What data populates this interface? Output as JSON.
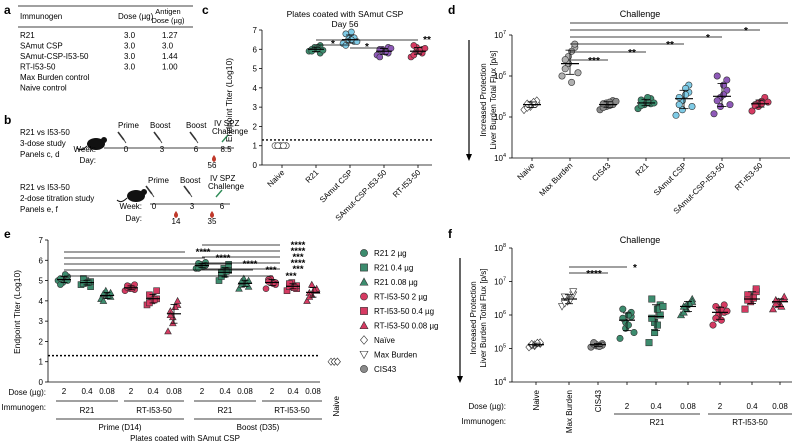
{
  "panel_labels": {
    "a": "a",
    "b": "b",
    "c": "c",
    "d": "d",
    "e": "e",
    "f": "f"
  },
  "table_a": {
    "headers": {
      "immunogen": "Immunogen",
      "dose": "Dose (µg)",
      "antigen_line1": "Antigen",
      "antigen_line2": "Dose (µg)"
    },
    "rows": [
      {
        "immunogen": "R21",
        "dose": "3.0",
        "antigen": "1.27"
      },
      {
        "immunogen": "SAmut CSP",
        "dose": "3.0",
        "antigen": "3.0"
      },
      {
        "immunogen": "SAmut-CSP-I53-50",
        "dose": "3.0",
        "antigen": "1.44"
      },
      {
        "immunogen": "RT-I53-50",
        "dose": "3.0",
        "antigen": "1.00"
      },
      {
        "immunogen": "Max Burden control",
        "dose": "",
        "antigen": ""
      },
      {
        "immunogen": "Naive control",
        "dose": "",
        "antigen": ""
      }
    ]
  },
  "schematic_b": {
    "study1": {
      "line1": "R21 vs I53-50",
      "line2": "3-dose study",
      "line3": "Panels c, d",
      "events": [
        "Prime",
        "Boost",
        "Boost"
      ],
      "challenge_line1": "IV SPZ",
      "challenge_line2": "Challenge",
      "week_label": "Week:",
      "day_label": "Day:",
      "weeks": [
        "0",
        "3",
        "6",
        "8.5"
      ],
      "days": [
        "56"
      ]
    },
    "study2": {
      "line1": "R21 vs I53-50",
      "line2": "2-dose titration study",
      "line3": "Panels e, f",
      "events": [
        "Prime",
        "Boost"
      ],
      "challenge_line1": "IV SPZ",
      "challenge_line2": "Challenge",
      "week_label": "Week:",
      "day_label": "Day:",
      "weeks": [
        "0",
        "3",
        "6"
      ],
      "days": [
        "14",
        "35"
      ]
    }
  },
  "colors": {
    "r21": "#3c8c6e",
    "samut": "#7fcbe6",
    "samut_np": "#8e59b8",
    "rt": "#d63a62",
    "naive": "#ffffff",
    "maxburden": "#b0b0b0",
    "cis43": "#8a8a8a",
    "arrow": "#2e8b57",
    "drop": "#c0392b"
  },
  "chart_data": [
    {
      "panel": "c",
      "type": "scatter",
      "title": "Plates coated with SAmut CSP",
      "subtitle": "Day 56",
      "ylabel": "Endpoint Titer (Log10)",
      "ylim": [
        0,
        7
      ],
      "yticks": [
        "0",
        "1",
        "2",
        "3",
        "4",
        "5",
        "6",
        "7"
      ],
      "lod": 1.3,
      "categories": [
        "Naive",
        "R21",
        "SAmut CSP",
        "SAmut-CSP-I53-50",
        "RT-I53-50"
      ],
      "means": [
        1.0,
        6.0,
        6.5,
        5.9,
        5.9
      ],
      "values": [
        [
          1,
          1,
          1,
          1,
          1,
          1,
          1,
          1
        ],
        [
          5.9,
          6.0,
          6.1,
          5.8,
          6.2,
          6.0,
          5.9,
          6.1,
          6.0,
          5.95
        ],
        [
          6.3,
          6.5,
          6.7,
          6.4,
          6.6,
          6.8,
          6.2,
          6.5,
          6.9,
          6.4
        ],
        [
          5.7,
          5.9,
          6.0,
          5.8,
          6.1,
          5.6,
          6.0,
          5.9,
          5.85,
          6.05
        ],
        [
          5.6,
          5.9,
          6.1,
          5.8,
          6.0,
          6.2,
          5.7,
          5.9,
          5.95,
          6.05
        ]
      ],
      "significance": [
        {
          "from": 1,
          "to": 2,
          "label": "*"
        },
        {
          "from": 2,
          "to": 3,
          "label": "*"
        },
        {
          "from": 1,
          "to": 4,
          "label": "**"
        }
      ]
    },
    {
      "panel": "d",
      "type": "scatter",
      "title": "Challenge",
      "ylabel": "Liver Burden Total Flux [p/s]",
      "arrow_label": "Increased Protection",
      "ylim_log10": [
        4,
        7
      ],
      "yticks": [
        "10",
        "10",
        "10",
        "10"
      ],
      "ytick_exps": [
        "4",
        "5",
        "6",
        "7"
      ],
      "categories": [
        "Naive",
        "Max Burden",
        "CIS43",
        "R21",
        "SAmut CSP",
        "SAmut-CSP-I53-50",
        "RT-I53-50"
      ],
      "means": [
        200000,
        2000000,
        200000,
        220000,
        280000,
        320000,
        210000
      ],
      "values": [
        [
          150000,
          180000,
          200000,
          220000,
          250000,
          170000,
          210000,
          230000
        ],
        [
          1000000,
          2000000,
          3000000,
          5000000,
          6000000,
          2500000,
          1500000,
          4000000,
          700000,
          1200000
        ],
        [
          150000,
          180000,
          220000,
          250000,
          200000,
          170000,
          210000,
          190000,
          230000,
          240000
        ],
        [
          160000,
          200000,
          240000,
          280000,
          210000,
          190000,
          260000,
          230000,
          300000,
          220000
        ],
        [
          110000,
          150000,
          250000,
          400000,
          600000,
          300000,
          200000,
          350000,
          500000,
          180000
        ],
        [
          120000,
          180000,
          300000,
          450000,
          800000,
          1000000,
          250000,
          350000,
          600000,
          200000
        ],
        [
          140000,
          180000,
          220000,
          260000,
          300000,
          200000,
          190000,
          240000,
          210000,
          230000
        ]
      ],
      "significance": [
        {
          "from": 1,
          "to": 2,
          "label": "***"
        },
        {
          "from": 1,
          "to": 3,
          "label": "**"
        },
        {
          "from": 1,
          "to": 4,
          "label": "**"
        },
        {
          "from": 1,
          "to": 5,
          "label": "*"
        },
        {
          "from": 1,
          "to": 6,
          "label": "*"
        }
      ]
    },
    {
      "panel": "e",
      "type": "scatter",
      "title": "Plates coated with SAmut CSP",
      "ylabel": "Endpoint Titer (Log10)",
      "ylim": [
        0,
        7
      ],
      "yticks": [
        "0",
        "1",
        "2",
        "3",
        "4",
        "5",
        "6",
        "7"
      ],
      "lod": 1.3,
      "dose_label": "Dose (µg):",
      "immunogen_label": "Immunogen:",
      "doses": [
        "2",
        "0.4",
        "0.08",
        "2",
        "0.4",
        "0.08",
        "2",
        "0.4",
        "0.08",
        "2",
        "0.4",
        "0.08"
      ],
      "groups": [
        {
          "label": "R21",
          "phase": "Prime (D14)"
        },
        {
          "label": "RT-I53-50",
          "phase": "Prime (D14)"
        },
        {
          "label": "R21",
          "phase": "Boost (D35)"
        },
        {
          "label": "RT-I53-50",
          "phase": "Boost (D35)"
        }
      ],
      "phases": [
        "Prime (D14)",
        "Boost (D35)"
      ],
      "naive_label": "Naive",
      "series": [
        {
          "name": "R21 2 µg",
          "marker": "circle",
          "color": "#3c8c6e",
          "values": [
            5.0,
            5.1,
            4.9,
            5.2,
            5.0,
            4.8,
            5.1,
            5.3
          ],
          "boost": [
            5.6,
            5.7,
            5.8,
            5.9,
            5.75,
            5.6,
            5.85,
            5.7
          ]
        },
        {
          "name": "R21 0.4 µg",
          "marker": "square",
          "color": "#3c8c6e",
          "values": [
            4.8,
            4.9,
            5.0,
            4.7,
            4.95,
            5.1,
            4.85,
            4.9
          ],
          "boost": [
            5.0,
            5.3,
            5.6,
            5.8,
            5.5,
            5.2,
            5.4,
            5.45
          ]
        },
        {
          "name": "R21 0.08 µg",
          "marker": "triangle",
          "color": "#3c8c6e",
          "values": [
            4.1,
            4.3,
            4.5,
            4.2,
            4.4,
            4.0,
            4.35,
            4.25
          ],
          "boost": [
            4.6,
            4.9,
            5.1,
            4.7,
            5.0,
            4.8,
            4.95,
            4.85
          ]
        },
        {
          "name": "RT-I53-50 2 µg",
          "marker": "circle",
          "color": "#d63a62",
          "values": [
            4.5,
            4.7,
            4.6,
            4.8,
            4.55,
            4.65,
            4.75,
            4.6
          ],
          "boost": [
            4.6,
            5.0,
            5.1,
            4.9,
            4.8,
            5.05,
            4.95,
            4.85
          ]
        },
        {
          "name": "RT-I53-50 0.4 µg",
          "marker": "square",
          "color": "#d63a62",
          "values": [
            3.8,
            4.0,
            4.2,
            4.5,
            4.1,
            3.9,
            4.3,
            4.05
          ],
          "boost": [
            4.5,
            4.8,
            4.9,
            4.6,
            4.75,
            4.7,
            4.85,
            4.65
          ]
        },
        {
          "name": "RT-I53-50 0.08 µg",
          "marker": "triangle",
          "color": "#d63a62",
          "values": [
            2.5,
            2.9,
            3.2,
            3.8,
            4.0,
            3.5,
            3.3,
            3.7
          ],
          "boost": [
            4.0,
            4.3,
            4.8,
            4.5,
            4.6,
            4.4,
            4.2,
            4.55
          ]
        },
        {
          "name": "Naïve",
          "marker": "diamond",
          "color": "#ffffff",
          "values": [
            1,
            1,
            1,
            1,
            1
          ]
        },
        {
          "name": "Max Burden",
          "marker": "invtriangle",
          "color": "#ffffff",
          "values": []
        },
        {
          "name": "CIS43",
          "marker": "circle",
          "color": "#8a8a8a",
          "values": []
        }
      ],
      "sig_labels": [
        "****",
        "****",
        "****",
        "***",
        "***",
        "****",
        "****",
        "***",
        "****",
        "***"
      ]
    },
    {
      "panel": "f",
      "type": "scatter",
      "title": "Challenge",
      "ylabel": "Liver Burden Total Flux [p/s]",
      "arrow_label": "Increased Protection",
      "ylim_log10": [
        4,
        8
      ],
      "ytick_exps": [
        "4",
        "5",
        "6",
        "7",
        "8"
      ],
      "dose_label": "Dose (µg):",
      "immunogen_label": "Immunogen:",
      "categories": [
        "Naive",
        "Max Burden",
        "CIS43",
        "R21 2",
        "R21 0.4",
        "R21 0.08",
        "RT-I53-50 2",
        "RT-I53-50 0.4",
        "RT-I53-50 0.08"
      ],
      "doses": [
        "2",
        "0.4",
        "0.08",
        "2",
        "0.4",
        "0.08"
      ],
      "groups": [
        "R21",
        "RT-I53-50"
      ],
      "means": [
        130000,
        3000000,
        130000,
        700000,
        900000,
        1800000,
        1200000,
        3000000,
        2500000
      ],
      "values": [
        [
          110000,
          120000,
          130000,
          140000,
          150000,
          125000,
          135000,
          145000
        ],
        [
          1800000,
          2500000,
          3000000,
          4000000,
          5000000,
          2200000,
          3500000,
          2800000
        ],
        [
          110000,
          120000,
          130000,
          140000,
          125000,
          135000,
          150000,
          115000
        ],
        [
          200000,
          400000,
          600000,
          900000,
          1200000,
          1500000,
          800000,
          500000,
          1000000,
          300000
        ],
        [
          150000,
          300000,
          600000,
          1000000,
          2000000,
          3000000,
          800000,
          1500000,
          500000,
          1800000
        ],
        [
          1000000,
          1500000,
          2000000,
          3000000,
          2500000,
          1800000,
          1200000,
          2200000
        ],
        [
          500000,
          1000000,
          1500000,
          2000000,
          1200000,
          800000,
          1800000,
          1400000,
          700000,
          1300000
        ],
        [
          1500000,
          2500000,
          3500000,
          5000000,
          6000000,
          4000000,
          2800000,
          3200000
        ],
        [
          1500000,
          2000000,
          2500000,
          3000000,
          3500000,
          2200000,
          2800000,
          1800000
        ]
      ],
      "significance": [
        {
          "from": 1,
          "to": 3,
          "label": "*"
        },
        {
          "from": 1,
          "to": 2,
          "label": "****"
        }
      ]
    }
  ]
}
